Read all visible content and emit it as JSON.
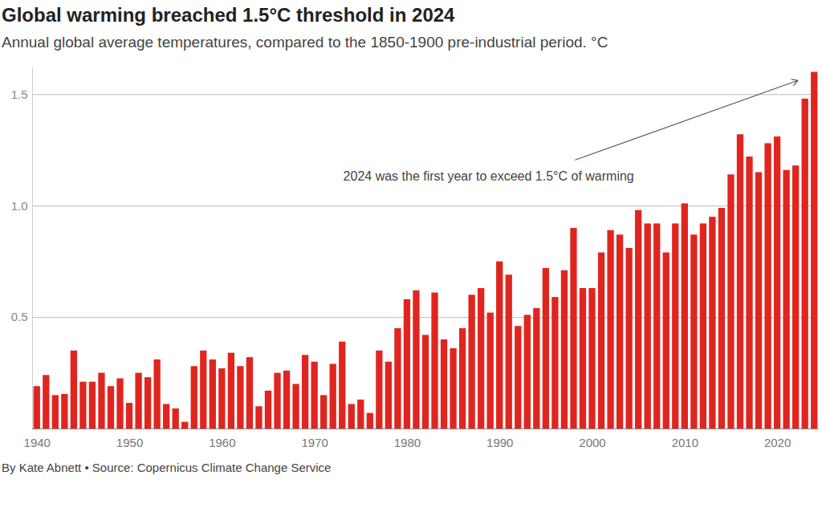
{
  "chart_data": {
    "type": "bar",
    "title": "Global warming breached 1.5°C threshold in 2024",
    "subtitle": "Annual global average temperatures, compared to the 1850-1900 pre-industrial period. °C",
    "annotation": "2024 was the first year to exceed 1.5°C of warming",
    "caption": "By Kate Abnett • Source: Copernicus Climate Change Service",
    "x": [
      1940,
      1941,
      1942,
      1943,
      1944,
      1945,
      1946,
      1947,
      1948,
      1949,
      1950,
      1951,
      1952,
      1953,
      1954,
      1955,
      1956,
      1957,
      1958,
      1959,
      1960,
      1961,
      1962,
      1963,
      1964,
      1965,
      1966,
      1967,
      1968,
      1969,
      1970,
      1971,
      1972,
      1973,
      1974,
      1975,
      1976,
      1977,
      1978,
      1979,
      1980,
      1981,
      1982,
      1983,
      1984,
      1985,
      1986,
      1987,
      1988,
      1989,
      1990,
      1991,
      1992,
      1993,
      1994,
      1995,
      1996,
      1997,
      1998,
      1999,
      2000,
      2001,
      2002,
      2003,
      2004,
      2005,
      2006,
      2007,
      2008,
      2009,
      2010,
      2011,
      2012,
      2013,
      2014,
      2015,
      2016,
      2017,
      2018,
      2019,
      2020,
      2021,
      2022,
      2023,
      2024
    ],
    "values": [
      0.19,
      0.24,
      0.15,
      0.155,
      0.35,
      0.21,
      0.21,
      0.25,
      0.19,
      0.225,
      0.115,
      0.25,
      0.23,
      0.31,
      0.11,
      0.09,
      0.03,
      0.28,
      0.35,
      0.31,
      0.27,
      0.34,
      0.28,
      0.32,
      0.1,
      0.17,
      0.25,
      0.26,
      0.2,
      0.33,
      0.3,
      0.15,
      0.29,
      0.39,
      0.11,
      0.13,
      0.07,
      0.35,
      0.3,
      0.45,
      0.58,
      0.62,
      0.42,
      0.61,
      0.4,
      0.36,
      0.45,
      0.6,
      0.63,
      0.52,
      0.75,
      0.69,
      0.46,
      0.51,
      0.54,
      0.72,
      0.59,
      0.71,
      0.9,
      0.63,
      0.63,
      0.79,
      0.89,
      0.87,
      0.81,
      0.98,
      0.92,
      0.92,
      0.79,
      0.92,
      1.01,
      0.87,
      0.92,
      0.95,
      0.99,
      1.14,
      1.32,
      1.22,
      1.15,
      1.28,
      1.31,
      1.16,
      1.18,
      1.48,
      1.6
    ],
    "color": "#e0251f",
    "xlim": [
      1939.5,
      2024.5
    ],
    "xticks": [
      1940,
      1950,
      1960,
      1970,
      1980,
      1990,
      2000,
      2010,
      2020
    ],
    "ylim": [
      0,
      1.62
    ],
    "yticks": [
      0.5,
      {
        "value": 1,
        "label": "1.0"
      },
      1.5
    ],
    "grid": true
  }
}
